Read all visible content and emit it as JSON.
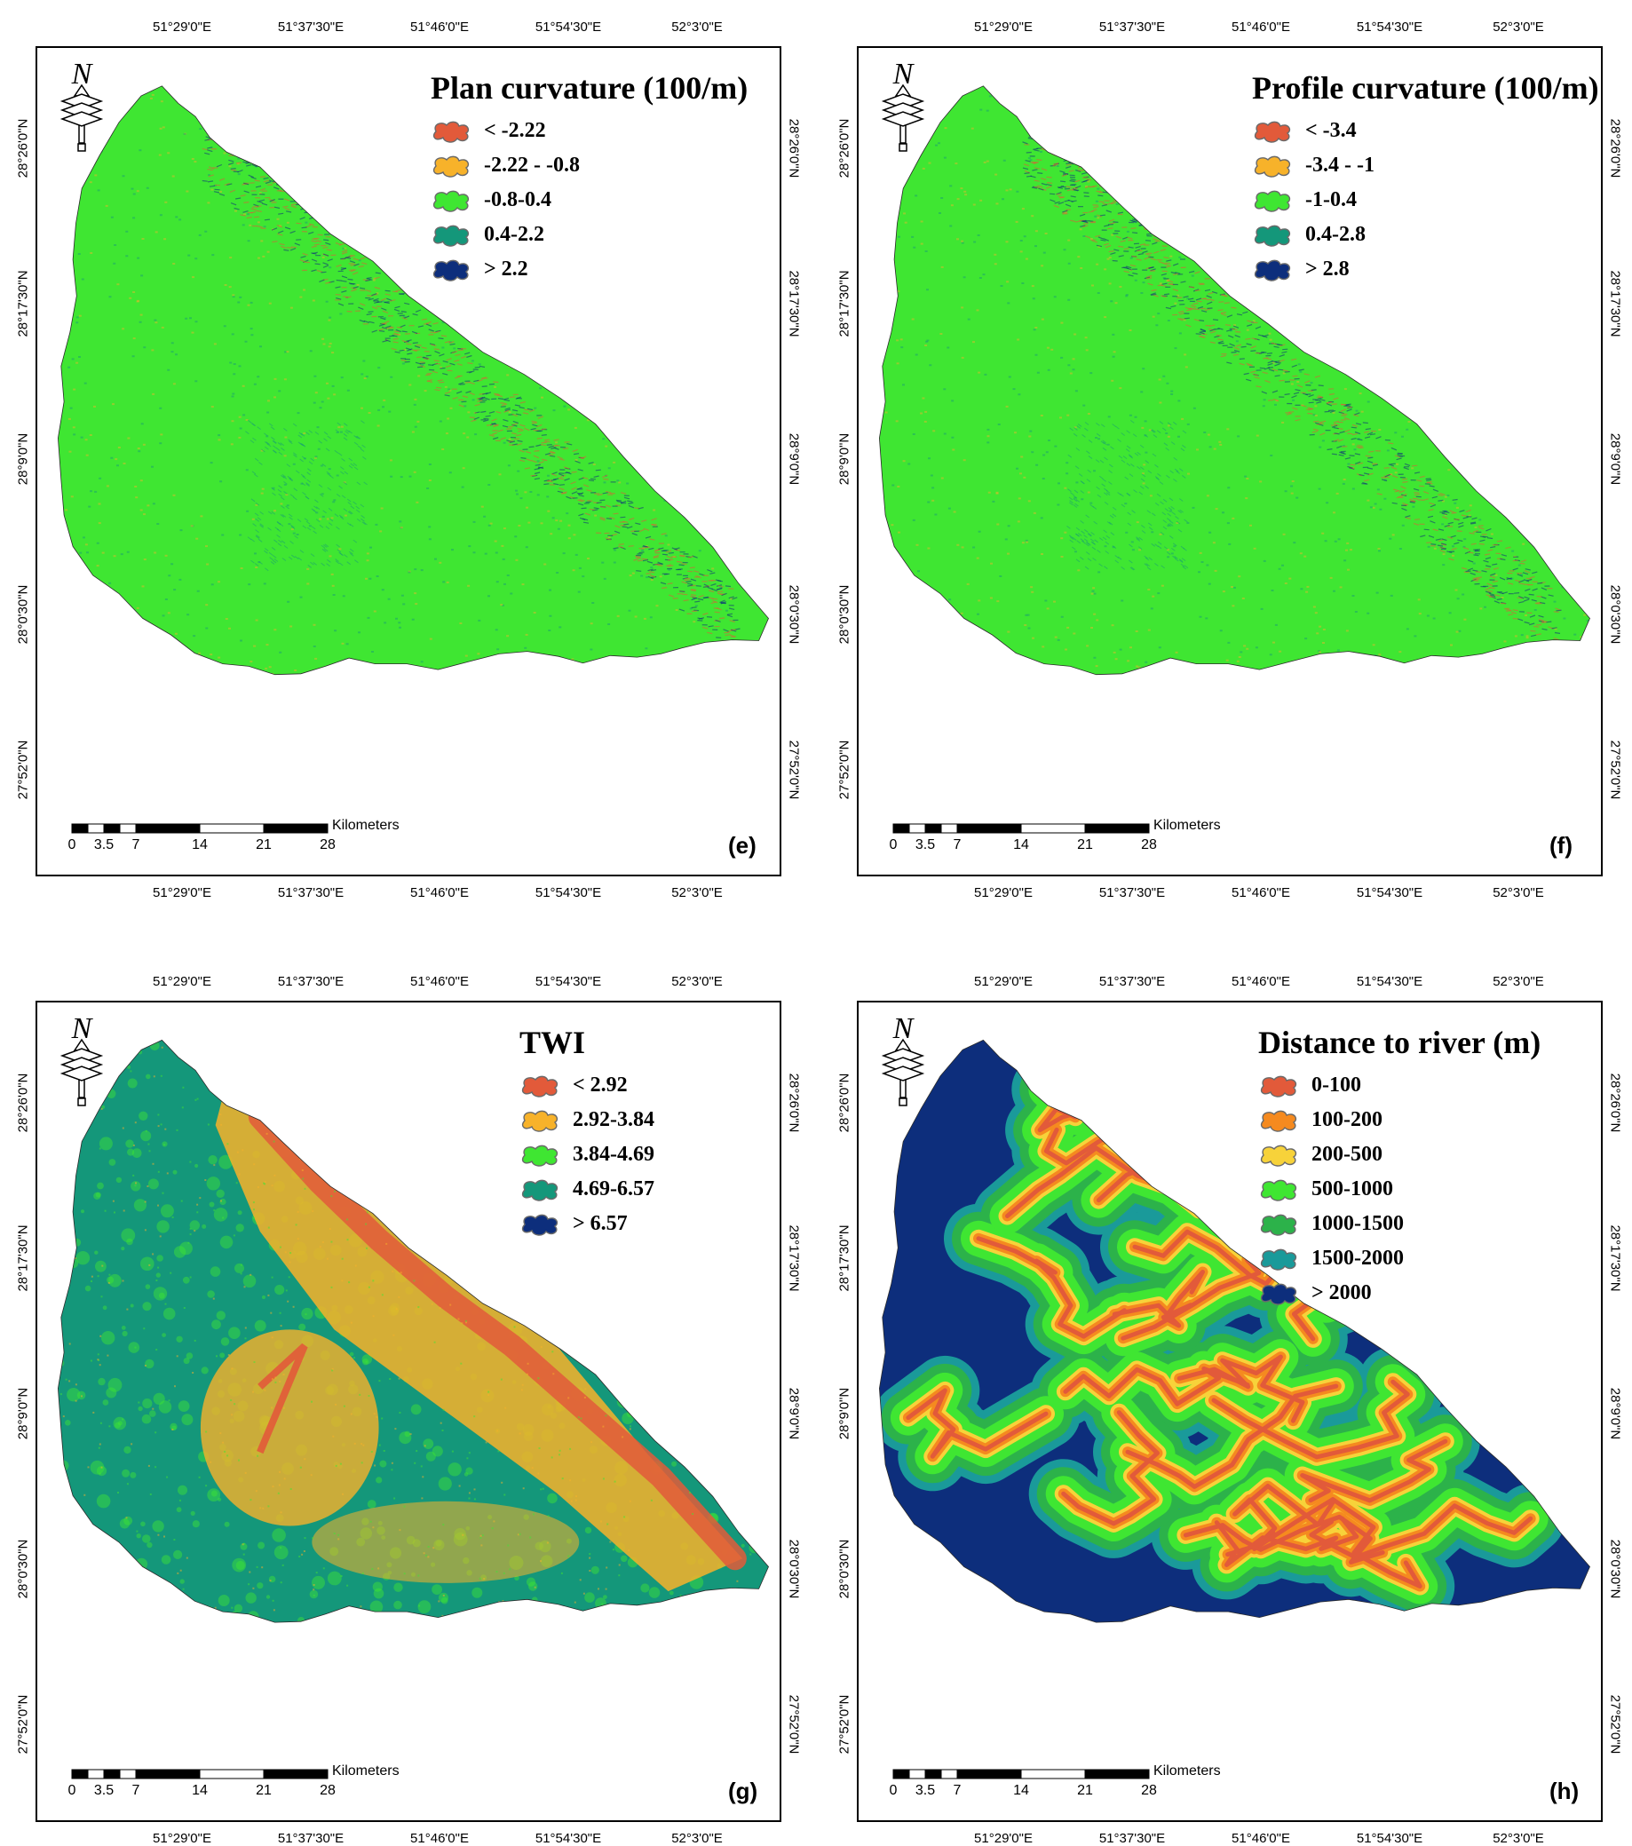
{
  "lon_ticks": [
    "51°29'0\"E",
    "51°37'30\"E",
    "51°46'0\"E",
    "51°54'30\"E",
    "52°3'0\"E"
  ],
  "lat_ticks": [
    "28°26'0\"N",
    "28°17'30\"N",
    "28°9'0\"N",
    "28°0'30\"N",
    "27°52'0\"N"
  ],
  "scale": {
    "unit": "Kilometers",
    "labels": [
      "0",
      "3.5",
      "7",
      "14",
      "21",
      "28"
    ]
  },
  "north_arrow": {
    "letter": "N",
    "icon": "north-arrow-icon"
  },
  "panels": [
    {
      "id": "e",
      "letter": "(e)",
      "title": "Plan curvature (100/m)",
      "fill_style": "curvature",
      "legend": [
        {
          "label": "< -2.22",
          "color": "#e25a3a"
        },
        {
          "label": "-2.22 - -0.8",
          "color": "#f7b22a"
        },
        {
          "label": "-0.8-0.4",
          "color": "#3fe632"
        },
        {
          "label": "0.4-2.2",
          "color": "#14977a"
        },
        {
          "label": "> 2.2",
          "color": "#0d2e7c"
        }
      ]
    },
    {
      "id": "f",
      "letter": "(f)",
      "title": "Profile curvature (100/m)",
      "fill_style": "curvature",
      "legend": [
        {
          "label": "< -3.4",
          "color": "#e25a3a"
        },
        {
          "label": "-3.4 - -1",
          "color": "#f7b22a"
        },
        {
          "label": "-1-0.4",
          "color": "#3fe632"
        },
        {
          "label": "0.4-2.8",
          "color": "#14977a"
        },
        {
          "label": "> 2.8",
          "color": "#0d2e7c"
        }
      ]
    },
    {
      "id": "g",
      "letter": "(g)",
      "title": "TWI",
      "fill_style": "twi",
      "legend": [
        {
          "label": "< 2.92",
          "color": "#e25a3a"
        },
        {
          "label": "2.92-3.84",
          "color": "#f7b22a"
        },
        {
          "label": "3.84-4.69",
          "color": "#3fe632"
        },
        {
          "label": "4.69-6.57",
          "color": "#14977a"
        },
        {
          "label": "> 6.57",
          "color": "#0d2e7c"
        }
      ]
    },
    {
      "id": "h",
      "letter": "(h)",
      "title": "Distance to river (m)",
      "fill_style": "river",
      "legend": [
        {
          "label": "0-100",
          "color": "#e25a3a"
        },
        {
          "label": "100-200",
          "color": "#f58a1f"
        },
        {
          "label": "200-500",
          "color": "#f7d23a"
        },
        {
          "label": "500-1000",
          "color": "#3fe632"
        },
        {
          "label": "1000-1500",
          "color": "#2cb24a"
        },
        {
          "label": "1500-2000",
          "color": "#1a9a9a"
        },
        {
          "label": "> 2000",
          "color": "#0d2e7c"
        }
      ]
    }
  ]
}
